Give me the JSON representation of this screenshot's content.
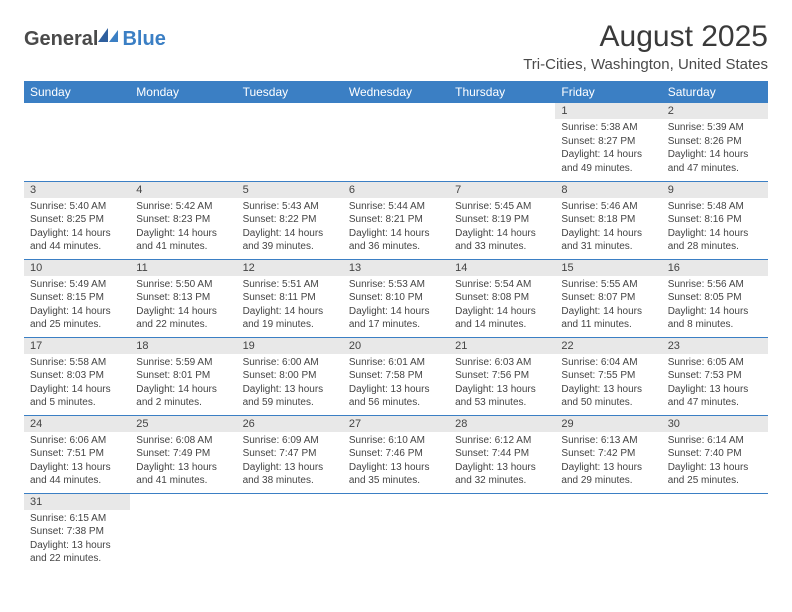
{
  "logo": {
    "text1": "General",
    "text2": "Blue"
  },
  "title": "August 2025",
  "location": "Tri-Cities, Washington, United States",
  "colors": {
    "header_bg": "#3b7fc4",
    "header_text": "#ffffff",
    "daynum_bg": "#e8e8e8",
    "row_border": "#3b7fc4",
    "body_text": "#444444",
    "background": "#ffffff"
  },
  "dayNames": [
    "Sunday",
    "Monday",
    "Tuesday",
    "Wednesday",
    "Thursday",
    "Friday",
    "Saturday"
  ],
  "weeks": [
    [
      null,
      null,
      null,
      null,
      null,
      {
        "n": "1",
        "sr": "5:38 AM",
        "ss": "8:27 PM",
        "dh": 14,
        "dm": 49
      },
      {
        "n": "2",
        "sr": "5:39 AM",
        "ss": "8:26 PM",
        "dh": 14,
        "dm": 47
      }
    ],
    [
      {
        "n": "3",
        "sr": "5:40 AM",
        "ss": "8:25 PM",
        "dh": 14,
        "dm": 44
      },
      {
        "n": "4",
        "sr": "5:42 AM",
        "ss": "8:23 PM",
        "dh": 14,
        "dm": 41
      },
      {
        "n": "5",
        "sr": "5:43 AM",
        "ss": "8:22 PM",
        "dh": 14,
        "dm": 39
      },
      {
        "n": "6",
        "sr": "5:44 AM",
        "ss": "8:21 PM",
        "dh": 14,
        "dm": 36
      },
      {
        "n": "7",
        "sr": "5:45 AM",
        "ss": "8:19 PM",
        "dh": 14,
        "dm": 33
      },
      {
        "n": "8",
        "sr": "5:46 AM",
        "ss": "8:18 PM",
        "dh": 14,
        "dm": 31
      },
      {
        "n": "9",
        "sr": "5:48 AM",
        "ss": "8:16 PM",
        "dh": 14,
        "dm": 28
      }
    ],
    [
      {
        "n": "10",
        "sr": "5:49 AM",
        "ss": "8:15 PM",
        "dh": 14,
        "dm": 25
      },
      {
        "n": "11",
        "sr": "5:50 AM",
        "ss": "8:13 PM",
        "dh": 14,
        "dm": 22
      },
      {
        "n": "12",
        "sr": "5:51 AM",
        "ss": "8:11 PM",
        "dh": 14,
        "dm": 19
      },
      {
        "n": "13",
        "sr": "5:53 AM",
        "ss": "8:10 PM",
        "dh": 14,
        "dm": 17
      },
      {
        "n": "14",
        "sr": "5:54 AM",
        "ss": "8:08 PM",
        "dh": 14,
        "dm": 14
      },
      {
        "n": "15",
        "sr": "5:55 AM",
        "ss": "8:07 PM",
        "dh": 14,
        "dm": 11
      },
      {
        "n": "16",
        "sr": "5:56 AM",
        "ss": "8:05 PM",
        "dh": 14,
        "dm": 8
      }
    ],
    [
      {
        "n": "17",
        "sr": "5:58 AM",
        "ss": "8:03 PM",
        "dh": 14,
        "dm": 5
      },
      {
        "n": "18",
        "sr": "5:59 AM",
        "ss": "8:01 PM",
        "dh": 14,
        "dm": 2
      },
      {
        "n": "19",
        "sr": "6:00 AM",
        "ss": "8:00 PM",
        "dh": 13,
        "dm": 59
      },
      {
        "n": "20",
        "sr": "6:01 AM",
        "ss": "7:58 PM",
        "dh": 13,
        "dm": 56
      },
      {
        "n": "21",
        "sr": "6:03 AM",
        "ss": "7:56 PM",
        "dh": 13,
        "dm": 53
      },
      {
        "n": "22",
        "sr": "6:04 AM",
        "ss": "7:55 PM",
        "dh": 13,
        "dm": 50
      },
      {
        "n": "23",
        "sr": "6:05 AM",
        "ss": "7:53 PM",
        "dh": 13,
        "dm": 47
      }
    ],
    [
      {
        "n": "24",
        "sr": "6:06 AM",
        "ss": "7:51 PM",
        "dh": 13,
        "dm": 44
      },
      {
        "n": "25",
        "sr": "6:08 AM",
        "ss": "7:49 PM",
        "dh": 13,
        "dm": 41
      },
      {
        "n": "26",
        "sr": "6:09 AM",
        "ss": "7:47 PM",
        "dh": 13,
        "dm": 38
      },
      {
        "n": "27",
        "sr": "6:10 AM",
        "ss": "7:46 PM",
        "dh": 13,
        "dm": 35
      },
      {
        "n": "28",
        "sr": "6:12 AM",
        "ss": "7:44 PM",
        "dh": 13,
        "dm": 32
      },
      {
        "n": "29",
        "sr": "6:13 AM",
        "ss": "7:42 PM",
        "dh": 13,
        "dm": 29
      },
      {
        "n": "30",
        "sr": "6:14 AM",
        "ss": "7:40 PM",
        "dh": 13,
        "dm": 25
      }
    ],
    [
      {
        "n": "31",
        "sr": "6:15 AM",
        "ss": "7:38 PM",
        "dh": 13,
        "dm": 22
      },
      null,
      null,
      null,
      null,
      null,
      null
    ]
  ],
  "labels": {
    "sunrise": "Sunrise:",
    "sunset": "Sunset:",
    "daylight": "Daylight:",
    "hours": "hours",
    "and": "and",
    "minutes": "minutes."
  }
}
